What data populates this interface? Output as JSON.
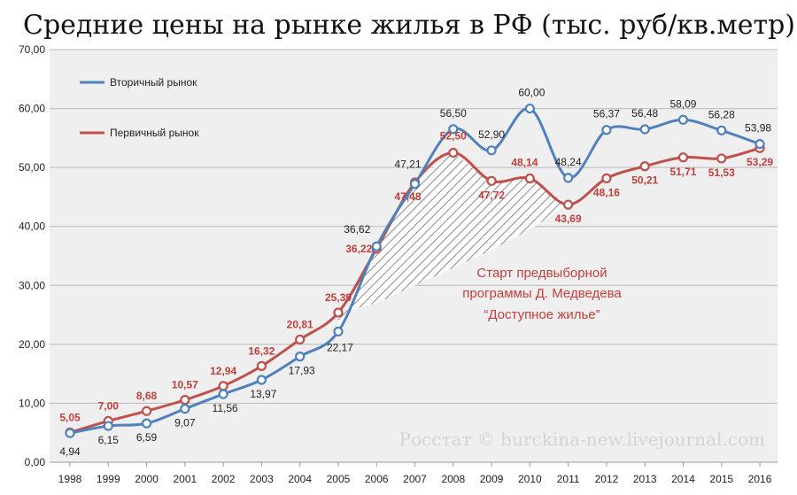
{
  "title": "Средние цены на рынке жилья в РФ (тыс. руб/кв.метр)",
  "source_text": "Росстат © burckina-new.livejournal.com",
  "annotation": {
    "lines": [
      "Старт предвыборной",
      "программы Д. Медведева",
      "“Доступное жилье”"
    ]
  },
  "chart_data": {
    "type": "line",
    "title": "Средние цены на рынке жилья в РФ (тыс. руб/кв.метр)",
    "x": [
      "1998",
      "1999",
      "2000",
      "2001",
      "2002",
      "2003",
      "2004",
      "2005",
      "2006",
      "2007",
      "2008",
      "2009",
      "2010",
      "2011",
      "2012",
      "2013",
      "2014",
      "2015",
      "2016"
    ],
    "ylim": [
      0,
      70
    ],
    "yticks": [
      "0,00",
      "10,00",
      "20,00",
      "30,00",
      "40,00",
      "50,00",
      "60,00",
      "70,00"
    ],
    "ytick_values": [
      0,
      10,
      20,
      30,
      40,
      50,
      60,
      70
    ],
    "grid": true,
    "legend_position": "top-left",
    "series": [
      {
        "name": "Вторичный рынок",
        "color": "#4f81bd",
        "values": [
          4.94,
          6.15,
          6.59,
          9.07,
          11.56,
          13.97,
          17.93,
          22.17,
          36.62,
          47.21,
          56.5,
          52.9,
          60.0,
          48.24,
          56.37,
          56.48,
          58.09,
          56.28,
          53.98
        ],
        "labels": [
          "4,94",
          "6,15",
          "6,59",
          "9,07",
          "11,56",
          "13,97",
          "17,93",
          "22,17",
          "36,62",
          "47,21",
          "56,50",
          "52,90",
          "60,00",
          "48,24",
          "56,37",
          "56,48",
          "58,09",
          "56,28",
          "53,98"
        ]
      },
      {
        "name": "Первичный рынок",
        "color": "#c0504d",
        "values": [
          5.05,
          7.0,
          8.68,
          10.57,
          12.94,
          16.32,
          20.81,
          25.39,
          36.22,
          47.48,
          52.5,
          47.72,
          48.14,
          43.69,
          48.16,
          50.21,
          51.71,
          51.53,
          53.29
        ],
        "labels": [
          "5,05",
          "7,00",
          "8,68",
          "10,57",
          "12,94",
          "16,32",
          "20,81",
          "25,39",
          "36,22",
          "47,48",
          "52,50",
          "47,72",
          "48,14",
          "43,69",
          "48,16",
          "50,21",
          "51,71",
          "51,53",
          "53,29"
        ]
      }
    ]
  }
}
